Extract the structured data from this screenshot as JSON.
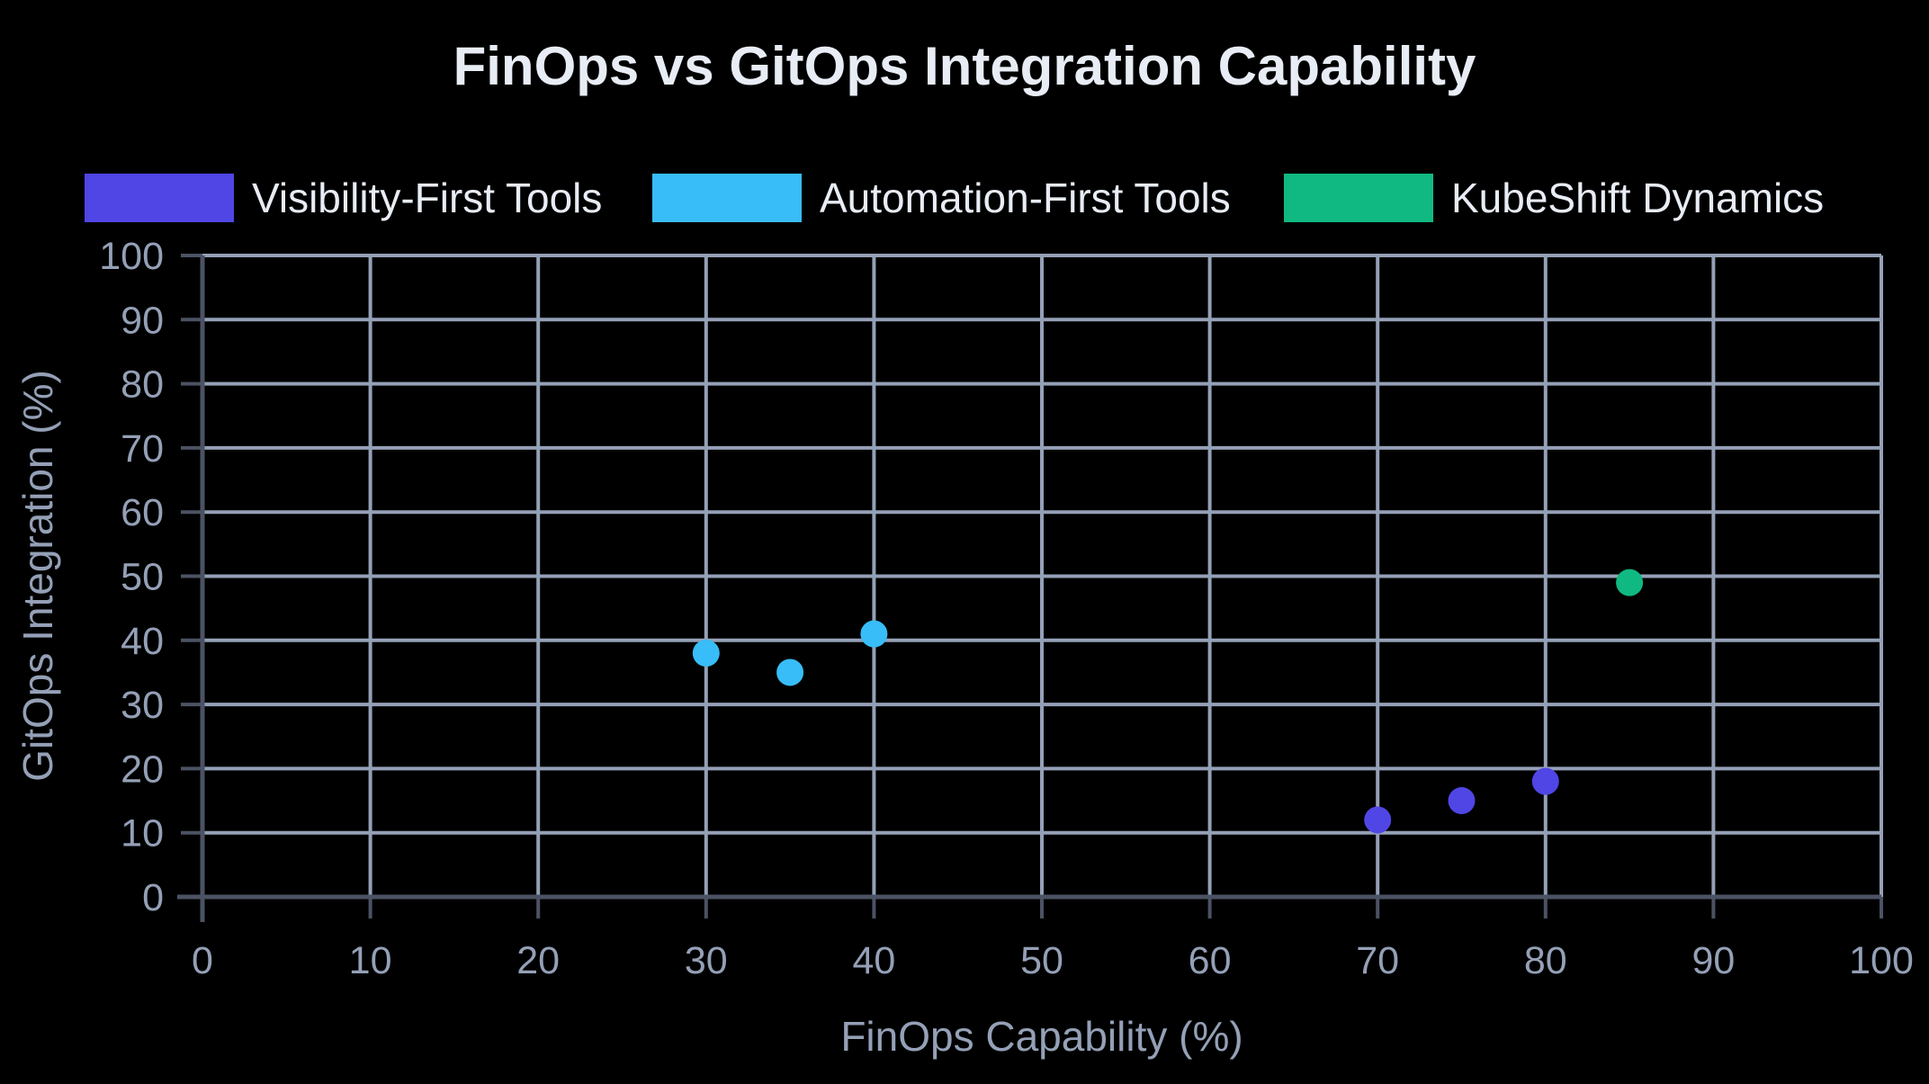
{
  "chart_data": {
    "type": "scatter",
    "title": "FinOps vs GitOps Integration Capability",
    "xlabel": "FinOps Capability (%)",
    "ylabel": "GitOps Integration (%)",
    "xlim": [
      0,
      100
    ],
    "ylim": [
      0,
      100
    ],
    "x_ticks": [
      "0",
      "10",
      "20",
      "30",
      "40",
      "50",
      "60",
      "70",
      "80",
      "90",
      "100"
    ],
    "y_ticks": [
      "0",
      "10",
      "20",
      "30",
      "40",
      "50",
      "60",
      "70",
      "80",
      "90",
      "100"
    ],
    "grid": true,
    "legend_position": "top",
    "series": [
      {
        "name": "Visibility-First Tools",
        "color": "#4f46e5",
        "points": [
          {
            "x": 70,
            "y": 12
          },
          {
            "x": 75,
            "y": 15
          },
          {
            "x": 80,
            "y": 18
          }
        ]
      },
      {
        "name": "Automation-First Tools",
        "color": "#38bdf8",
        "points": [
          {
            "x": 30,
            "y": 38
          },
          {
            "x": 35,
            "y": 35
          },
          {
            "x": 40,
            "y": 41
          }
        ]
      },
      {
        "name": "KubeShift Dynamics",
        "color": "#10b981",
        "points": [
          {
            "x": 85,
            "y": 49
          }
        ]
      }
    ]
  }
}
